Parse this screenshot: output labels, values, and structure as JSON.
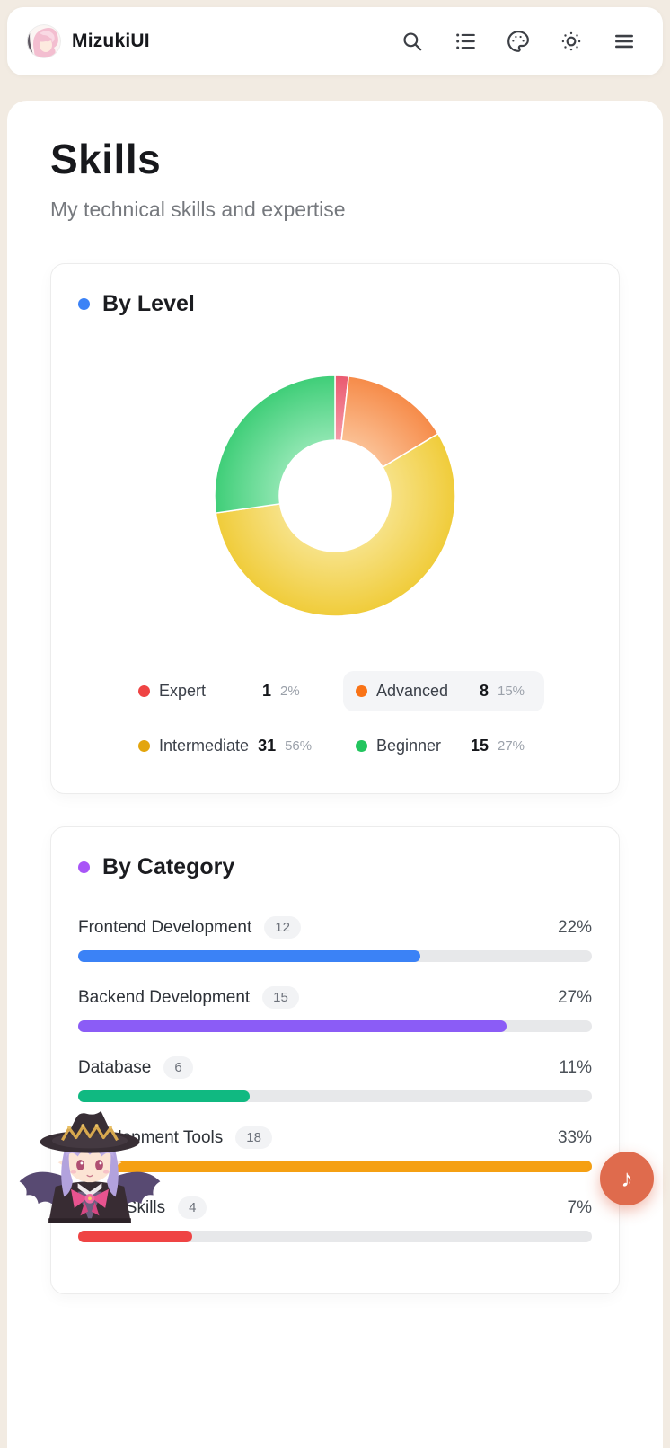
{
  "navbar": {
    "brand": "MizukiUI",
    "icons": [
      "search",
      "list",
      "palette",
      "sun",
      "menu"
    ]
  },
  "page": {
    "title": "Skills",
    "subtitle": "My technical skills and expertise"
  },
  "chart_data": [
    {
      "type": "pie",
      "variant": "donut",
      "title": "By Level",
      "title_dot_color": "#3b82f6",
      "labels": [
        "Expert",
        "Advanced",
        "Intermediate",
        "Beginner"
      ],
      "values": [
        1,
        8,
        31,
        15
      ],
      "percents": [
        "2%",
        "15%",
        "56%",
        "27%"
      ],
      "colors": [
        "#ea5a70",
        "#f68b49",
        "#f0cc3a",
        "#3fce78"
      ],
      "colors_inner": [
        "#f59aa8",
        "#fbc094",
        "#f7e287",
        "#8fe6b1"
      ],
      "legend_colors": [
        "#ef4444",
        "#f97316",
        "#e3a50d",
        "#22c55e"
      ],
      "legend_position": "bottom",
      "highlighted_label": "Advanced",
      "start_angle_deg": 0,
      "clockwise": true
    },
    {
      "type": "bar",
      "orientation": "horizontal",
      "title": "By Category",
      "title_dot_color": "#a855f7",
      "categories": [
        "Frontend Development",
        "Backend Development",
        "Database",
        "Development Tools",
        "Other Skills"
      ],
      "values": [
        12,
        15,
        6,
        18,
        4
      ],
      "percents": [
        "22%",
        "27%",
        "11%",
        "33%",
        "7%"
      ],
      "bar_colors": [
        "#3b82f6",
        "#8b5cf6",
        "#10b981",
        "#f5a013",
        "#ef4444"
      ],
      "max_value": 18,
      "track_color": "#e7e8ea"
    }
  ],
  "fab": {
    "icon": "music-note",
    "glyph": "♪",
    "color": "#df6b4d"
  },
  "mascot": {
    "description": "anime witch girl mascot"
  }
}
